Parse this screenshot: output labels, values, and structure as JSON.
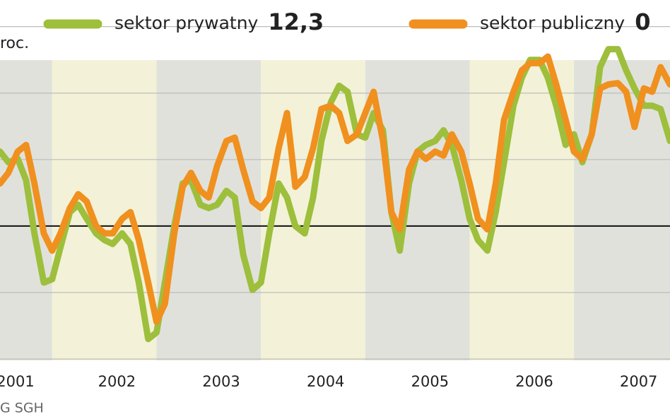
{
  "chart_data": {
    "type": "line",
    "y_unit": "roc.",
    "source": "G SGH",
    "x": [
      2001.5,
      2001.58,
      2001.67,
      2001.75,
      2001.83,
      2001.92,
      2002.0,
      2002.08,
      2002.17,
      2002.25,
      2002.33,
      2002.42,
      2002.5,
      2002.58,
      2002.67,
      2002.75,
      2002.83,
      2002.92,
      2003.0,
      2003.08,
      2003.17,
      2003.25,
      2003.33,
      2003.42,
      2003.5,
      2003.58,
      2003.67,
      2003.75,
      2003.83,
      2003.92,
      2004.0,
      2004.08,
      2004.17,
      2004.25,
      2004.33,
      2004.42,
      2004.5,
      2004.58,
      2004.67,
      2004.75,
      2004.83,
      2004.92,
      2005.0,
      2005.08,
      2005.17,
      2005.25,
      2005.33,
      2005.42,
      2005.5,
      2005.58,
      2005.67,
      2005.75,
      2005.83,
      2005.92,
      2006.0,
      2006.08,
      2006.17,
      2006.25,
      2006.33,
      2006.42,
      2006.5,
      2006.58,
      2006.67,
      2006.75,
      2006.83,
      2006.92,
      2007.0,
      2007.08,
      2007.17,
      2007.25,
      2007.33,
      2007.42,
      2007.5,
      2007.58,
      2007.67,
      2007.75,
      2007.83,
      2007.92
    ],
    "xlim": [
      2001.5,
      2007.92
    ],
    "years": [
      2001,
      2002,
      2003,
      2004,
      2005,
      2006,
      2007
    ],
    "year_colors": [
      "#e1e1dc",
      "#f3f2d8"
    ],
    "ylim": [
      -20.2,
      34
    ],
    "yticks": [
      -20,
      -10,
      0,
      10,
      20,
      30
    ],
    "zero_line": 0,
    "series": [
      {
        "name": "sektor prywatny",
        "legend_value": "12,3",
        "color": "#9dbf3c",
        "values": [
          11.2,
          9.6,
          10.1,
          6.9,
          -1.1,
          -8.5,
          -8.0,
          -3.2,
          2.1,
          3.2,
          1.1,
          -1.1,
          -2.1,
          -2.7,
          -1.1,
          -2.7,
          -8.5,
          -17.0,
          -16.0,
          -8.5,
          0,
          6.4,
          6.9,
          3.2,
          2.7,
          3.2,
          5.3,
          4.3,
          -4.3,
          -9.6,
          -8.5,
          -1.1,
          6.4,
          4.3,
          0,
          -1.1,
          4.3,
          12.8,
          18.6,
          21.1,
          20.2,
          13.8,
          13.3,
          17.0,
          14.4,
          2.1,
          -3.7,
          6.4,
          11.2,
          12.2,
          12.8,
          14.4,
          12.2,
          6.9,
          1.1,
          -2.1,
          -3.7,
          2.1,
          9.6,
          18.1,
          22.3,
          25.0,
          25.0,
          22.3,
          18.1,
          12.2,
          13.8,
          9.6,
          13.8,
          23.9,
          26.6,
          26.6,
          23.4,
          20.7,
          18.1,
          18.1,
          17.6,
          12.8
        ]
      },
      {
        "name": "sektor publiczny",
        "legend_value": "0",
        "color": "#f0901f",
        "values": [
          6.4,
          8.0,
          11.2,
          12.2,
          6.4,
          -1.1,
          -3.7,
          -1.1,
          2.7,
          4.8,
          3.7,
          0,
          -1.1,
          -1.1,
          1.1,
          2.1,
          -2.1,
          -8.5,
          -14.4,
          -11.7,
          -1.1,
          5.9,
          8.0,
          5.3,
          4.3,
          9.0,
          12.8,
          13.3,
          8.5,
          3.7,
          2.7,
          4.3,
          11.7,
          17.0,
          5.9,
          7.4,
          11.7,
          17.6,
          18.1,
          17.0,
          12.8,
          13.8,
          17.0,
          20.2,
          12.8,
          2.1,
          -0.5,
          8.5,
          11.2,
          10.1,
          11.2,
          10.6,
          13.8,
          11.2,
          6.4,
          1.1,
          -0.5,
          6.4,
          16.0,
          20.2,
          23.4,
          24.5,
          24.5,
          25.5,
          21.3,
          16.0,
          11.2,
          10.1,
          13.8,
          20.7,
          21.3,
          21.5,
          20.2,
          14.9,
          20.7,
          20.2,
          23.9,
          21.3
        ]
      }
    ]
  }
}
